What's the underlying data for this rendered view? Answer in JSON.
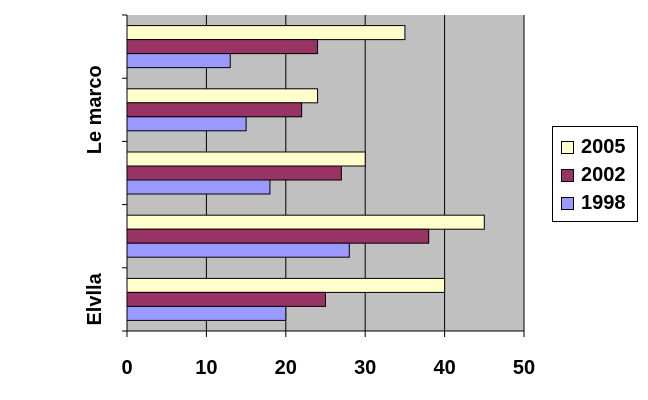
{
  "chart_data": {
    "type": "bar",
    "orientation": "horizontal",
    "categories": [
      "Elvlla",
      "",
      "",
      "Le marco",
      ""
    ],
    "series": [
      {
        "name": "2005",
        "color": "#FFFFCC",
        "values": [
          40,
          45,
          30,
          24,
          35
        ]
      },
      {
        "name": "2002",
        "color": "#993366",
        "values": [
          25,
          38,
          27,
          22,
          24
        ]
      },
      {
        "name": "1998",
        "color": "#9999FF",
        "values": [
          20,
          28,
          18,
          15,
          13
        ]
      }
    ],
    "x_ticks": [
      "0",
      "10",
      "20",
      "30",
      "40",
      "50"
    ],
    "xlim": [
      0,
      50
    ],
    "grid": true,
    "plot_background": "#C0C0C0",
    "legend_placement": "right"
  }
}
